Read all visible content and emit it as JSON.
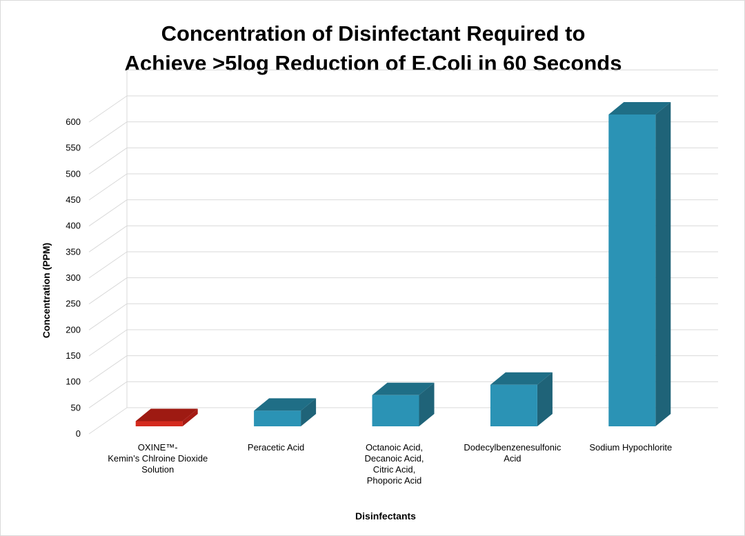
{
  "chart_data": {
    "type": "bar",
    "title": [
      "Concentration of Disinfectant Required to",
      "Achieve >5log Reduction of E.Coli in 60 Seconds"
    ],
    "xlabel": "Disinfectants",
    "ylabel": "Concentration (PPM)",
    "ylim": [
      0,
      600
    ],
    "ytick_step": 50,
    "gridlines": true,
    "categories": [
      {
        "lines": [
          "OXINE™-",
          "Kemin’s Chlroine Dioxide",
          "Solution"
        ]
      },
      {
        "lines": [
          "Peracetic Acid"
        ]
      },
      {
        "lines": [
          "Octanoic Acid,",
          "Decanoic Acid,",
          "Citric Acid,",
          "Phoporic Acid"
        ]
      },
      {
        "lines": [
          "Dodecylbenzenesulfonic",
          "Acid"
        ]
      },
      {
        "lines": [
          "Sodium Hypochlorite"
        ]
      }
    ],
    "values": [
      10,
      30,
      60,
      80,
      600
    ],
    "colors": [
      {
        "front": "#d42a1e",
        "top": "#9e1a12",
        "side": "#a61b14"
      },
      {
        "front": "#2b93b5",
        "top": "#1f6e86",
        "side": "#1f6378"
      },
      {
        "front": "#2b93b5",
        "top": "#1f6e86",
        "side": "#1f6378"
      },
      {
        "front": "#2b93b5",
        "top": "#1f6e86",
        "side": "#1f6378"
      },
      {
        "front": "#2b93b5",
        "top": "#1f6e86",
        "side": "#1f6378"
      }
    ]
  }
}
